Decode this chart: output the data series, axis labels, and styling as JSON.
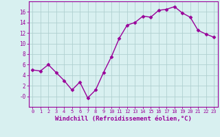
{
  "x": [
    0,
    1,
    2,
    3,
    4,
    5,
    6,
    7,
    8,
    9,
    10,
    11,
    12,
    13,
    14,
    15,
    16,
    17,
    18,
    19,
    20,
    21,
    22,
    23
  ],
  "y": [
    5.0,
    4.8,
    6.0,
    4.5,
    3.0,
    1.2,
    2.7,
    -0.3,
    1.2,
    4.5,
    7.5,
    11.0,
    13.5,
    14.0,
    15.2,
    15.0,
    16.3,
    16.5,
    17.0,
    15.8,
    15.0,
    12.5,
    11.8,
    11.2
  ],
  "line_color": "#990099",
  "marker": "D",
  "marker_size": 2.5,
  "line_width": 1.0,
  "xlabel": "Windchill (Refroidissement éolien,°C)",
  "xlabel_fontsize": 6.5,
  "bg_color": "#d8f0f0",
  "grid_color": "#b0d0d0",
  "tick_label_color": "#990099",
  "axis_color": "#990099",
  "ylim": [
    -2,
    18
  ],
  "yticks": [
    0,
    2,
    4,
    6,
    8,
    10,
    12,
    14,
    16
  ],
  "ytick_labels": [
    "-0",
    "2",
    "4",
    "6",
    "8",
    "10",
    "12",
    "14",
    "16"
  ]
}
